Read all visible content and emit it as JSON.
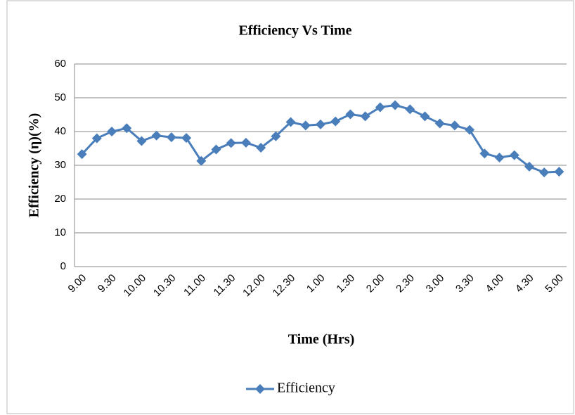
{
  "chart_data": {
    "type": "line",
    "title": "Efficiency Vs Time",
    "x_label": "Time (Hrs)",
    "y_label": "Efficiency (η)(%)",
    "categories": [
      "9.00",
      null,
      "9.30",
      null,
      "10.00",
      null,
      "10.30",
      null,
      "11.00",
      null,
      "11.30",
      null,
      "12.00",
      null,
      "12.30",
      null,
      "1.00",
      null,
      "1.30",
      null,
      "2.00",
      null,
      "2.30",
      null,
      "3.00",
      null,
      "3.30",
      null,
      "4.00",
      null,
      "4.30",
      null,
      "5.00"
    ],
    "series": [
      {
        "name": "Efficiency",
        "color": "#4a7ebb",
        "values": [
          33.3,
          38,
          40,
          41,
          37.2,
          38.8,
          38.3,
          38.1,
          31.3,
          34.7,
          36.6,
          36.7,
          35.2,
          38.6,
          42.8,
          41.8,
          42.1,
          43,
          45.1,
          44.5,
          47.2,
          47.8,
          46.6,
          44.5,
          42.4,
          41.8,
          40.5,
          33.5,
          32.3,
          33,
          29.6,
          27.9,
          28.1
        ]
      }
    ],
    "ylim": [
      0,
      60
    ],
    "yticks": [
      0,
      10,
      20,
      30,
      40,
      50,
      60
    ],
    "grid": true,
    "legend": "bottom"
  }
}
